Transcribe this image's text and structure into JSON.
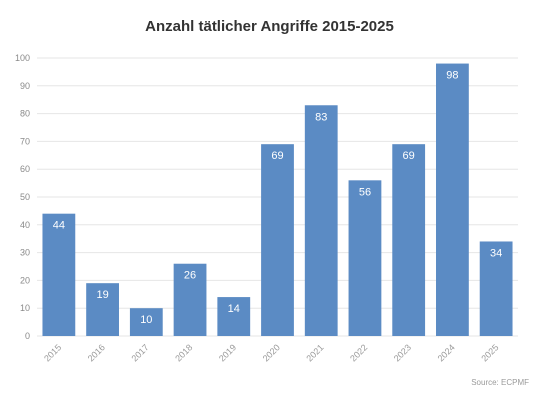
{
  "chart_data": {
    "type": "bar",
    "title": "Anzahl tätlicher Angriffe 2015-2025",
    "categories": [
      "2015",
      "2016",
      "2017",
      "2018",
      "2019",
      "2020",
      "2021",
      "2022",
      "2023",
      "2024",
      "2025"
    ],
    "values": [
      44,
      19,
      10,
      26,
      14,
      69,
      83,
      56,
      69,
      98,
      34
    ],
    "ylim": [
      0,
      100
    ],
    "yticks": [
      0,
      10,
      20,
      30,
      40,
      50,
      60,
      70,
      80,
      90,
      100
    ],
    "xlabel": "",
    "ylabel": "",
    "grid": true,
    "data_labels": true,
    "colors": {
      "bar": "#5b8bc4"
    },
    "source": "Source: ECPMF"
  }
}
